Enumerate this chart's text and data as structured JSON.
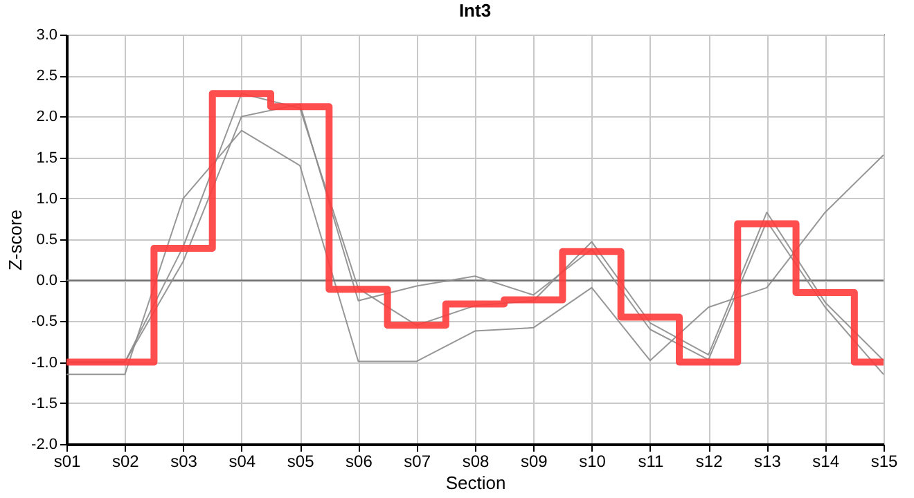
{
  "chart_data": {
    "type": "line",
    "title": "Int3",
    "xlabel": "Section",
    "ylabel": "Z-score",
    "categories": [
      "s01",
      "s02",
      "s03",
      "s04",
      "s05",
      "s06",
      "s07",
      "s08",
      "s09",
      "s10",
      "s11",
      "s12",
      "s13",
      "s14",
      "s15"
    ],
    "series": [
      {
        "color": "#8c8c8c",
        "values": [
          -1.15,
          -1.15,
          1.0,
          1.83,
          1.4,
          -0.99,
          -0.99,
          -0.62,
          -0.58,
          -0.09,
          -0.98,
          -0.33,
          -0.09,
          0.83,
          1.53
        ]
      },
      {
        "color": "#8c8c8c",
        "values": [
          -1.0,
          -1.0,
          0.41,
          2.28,
          2.1,
          -0.1,
          -0.55,
          -0.31,
          -0.25,
          0.47,
          -0.52,
          -0.91,
          0.83,
          -0.27,
          -0.98
        ]
      },
      {
        "color": "#8c8c8c",
        "values": [
          -1.0,
          -1.0,
          0.23,
          2.0,
          2.15,
          -0.25,
          -0.07,
          0.05,
          -0.18,
          0.38,
          -0.6,
          -0.97,
          0.72,
          -0.33,
          -1.15
        ]
      },
      {
        "type": "step",
        "color": "#ff3b3b",
        "values": [
          -1.0,
          -1.0,
          0.39,
          2.28,
          2.12,
          -0.11,
          -0.55,
          -0.29,
          -0.24,
          0.35,
          -0.45,
          -1.0,
          0.69,
          -0.15,
          -1.0
        ]
      }
    ],
    "ylim": [
      -2.0,
      3.0
    ],
    "yticks": [
      {
        "value": -2,
        "label": "-2.0"
      },
      {
        "value": -1.5,
        "label": "-1.5"
      },
      {
        "value": -1,
        "label": "-1.0"
      },
      {
        "value": -0.5,
        "label": "-0.5"
      },
      {
        "value": 0,
        "label": "0.0"
      },
      {
        "value": 0.5,
        "label": "0.5"
      },
      {
        "value": 1,
        "label": "1.0"
      },
      {
        "value": 1.5,
        "label": "1.5"
      },
      {
        "value": 2,
        "label": "2.0"
      },
      {
        "value": 2.5,
        "label": "2.5"
      },
      {
        "value": 3,
        "label": "3.0"
      }
    ],
    "ref_lines": [
      {
        "axis": "y",
        "value": 0,
        "color": "#707070"
      }
    ],
    "grid": true
  }
}
